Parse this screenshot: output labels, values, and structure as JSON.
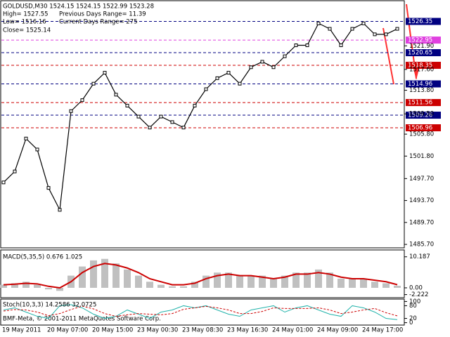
{
  "chart_data": [
    {
      "type": "line",
      "title": "GOLDUSD,M30  1524.15 1524.15 1522.99 1523.28",
      "annotations": [
        "High= 1527.55",
        "Previous Days Range= 11.39",
        "Low= 1516.16",
        "Current Days Range= 275",
        "Close= 1525.14"
      ],
      "categories": [
        "19 May 2011",
        null,
        null,
        null,
        "20 May 07:00",
        null,
        null,
        null,
        "20 May 15:00",
        null,
        null,
        null,
        "23 May 00:30",
        null,
        null,
        null,
        "23 May 08:30",
        null,
        null,
        null,
        "23 May 16:30",
        null,
        null,
        null,
        "24 May 01:00",
        null,
        null,
        null,
        "24 May 09:00",
        null,
        null,
        null,
        "24 May 17:00",
        null,
        null,
        null
      ],
      "values": [
        1497,
        1499,
        1505,
        1503,
        1496,
        1492,
        1510,
        1512,
        1515,
        1517,
        1513,
        1511,
        1509,
        1507,
        1509,
        1508,
        1507,
        1511,
        1514,
        1516,
        1517,
        1515,
        1518,
        1519,
        1518,
        1520,
        1522,
        1522,
        1526,
        1525,
        1522,
        1525,
        1526,
        1524,
        1524,
        1525
      ],
      "color": "#000000",
      "ylim": [
        1485.2,
        1530.0
      ],
      "yticks": [
        {
          "value": 1521.9,
          "label": "1521.90"
        },
        {
          "value": 1517.6,
          "label": "1517.60"
        },
        {
          "value": 1513.8,
          "label": "1513.80"
        },
        {
          "value": 1509.5,
          "label": "1509.50"
        },
        {
          "value": 1505.8,
          "label": "1505.80"
        },
        {
          "value": 1501.8,
          "label": "1501.80"
        },
        {
          "value": 1497.7,
          "label": "1497.70"
        },
        {
          "value": 1493.7,
          "label": "1493.70"
        },
        {
          "value": 1489.7,
          "label": "1489.70"
        },
        {
          "value": 1485.7,
          "label": "1485.70"
        }
      ],
      "levels": [
        {
          "value": 1526.35,
          "color": "#000080"
        },
        {
          "value": 1522.95,
          "color": "#e040e0"
        },
        {
          "value": 1520.65,
          "color": "#000080"
        },
        {
          "value": 1518.35,
          "color": "#cc0000"
        },
        {
          "value": 1514.96,
          "color": "#000080"
        },
        {
          "value": 1511.56,
          "color": "#cc0000"
        },
        {
          "value": 1509.26,
          "color": "#000080"
        },
        {
          "value": 1506.96,
          "color": "#cc0000"
        }
      ],
      "footer": "BMF-Meta, © 2001-2011 MetaQuotes Software Corp."
    },
    {
      "type": "macd",
      "title": "MACD(5,35,5) 0.676 1.025",
      "series": [
        {
          "color": "#c0c0c0",
          "values": [
            1,
            1.5,
            2,
            1,
            -0.5,
            -1,
            4,
            7,
            9,
            9.5,
            8,
            6,
            4,
            2,
            1,
            0.5,
            0.5,
            2,
            4,
            5,
            5,
            4,
            4,
            4,
            3,
            4,
            5,
            5,
            6,
            5,
            3,
            3,
            3,
            2,
            1.5,
            0.676
          ]
        },
        {
          "color": "#cc0000",
          "values": [
            1,
            1.2,
            1.5,
            1.3,
            0.5,
            0,
            2,
            5,
            7,
            8,
            7.5,
            6.5,
            5,
            3,
            2,
            1,
            1,
            1.5,
            3,
            4,
            4.5,
            4,
            4,
            3.5,
            3,
            3.5,
            4.5,
            4.5,
            5,
            4.5,
            3.5,
            3,
            3,
            2.5,
            2,
            1.025
          ]
        }
      ],
      "ylim": [
        -3.0,
        12.2
      ],
      "yticks": [
        10.187,
        {
          "value": 0,
          "label": "0.00"
        },
        -2.222
      ]
    },
    {
      "type": "line",
      "title": "Stoch(10,3,3) 14.2586 32.0725",
      "series": [
        {
          "color": "#20b2aa",
          "values": [
            60,
            70,
            50,
            30,
            20,
            80,
            85,
            70,
            40,
            20,
            30,
            60,
            40,
            20,
            50,
            60,
            80,
            70,
            80,
            60,
            40,
            30,
            60,
            70,
            80,
            50,
            70,
            80,
            60,
            40,
            30,
            80,
            70,
            50,
            20,
            14.2586
          ]
        },
        {
          "color": "#cc0000",
          "values": [
            55,
            62,
            60,
            50,
            33,
            43,
            62,
            78,
            65,
            43,
            30,
            37,
            43,
            40,
            37,
            43,
            63,
            70,
            77,
            70,
            60,
            43,
            43,
            53,
            70,
            67,
            67,
            67,
            70,
            60,
            43,
            50,
            60,
            67,
            47,
            32.0725
          ]
        }
      ],
      "ylim": [
        -8,
        108
      ],
      "yticks": [
        100,
        80,
        20,
        0
      ]
    }
  ]
}
